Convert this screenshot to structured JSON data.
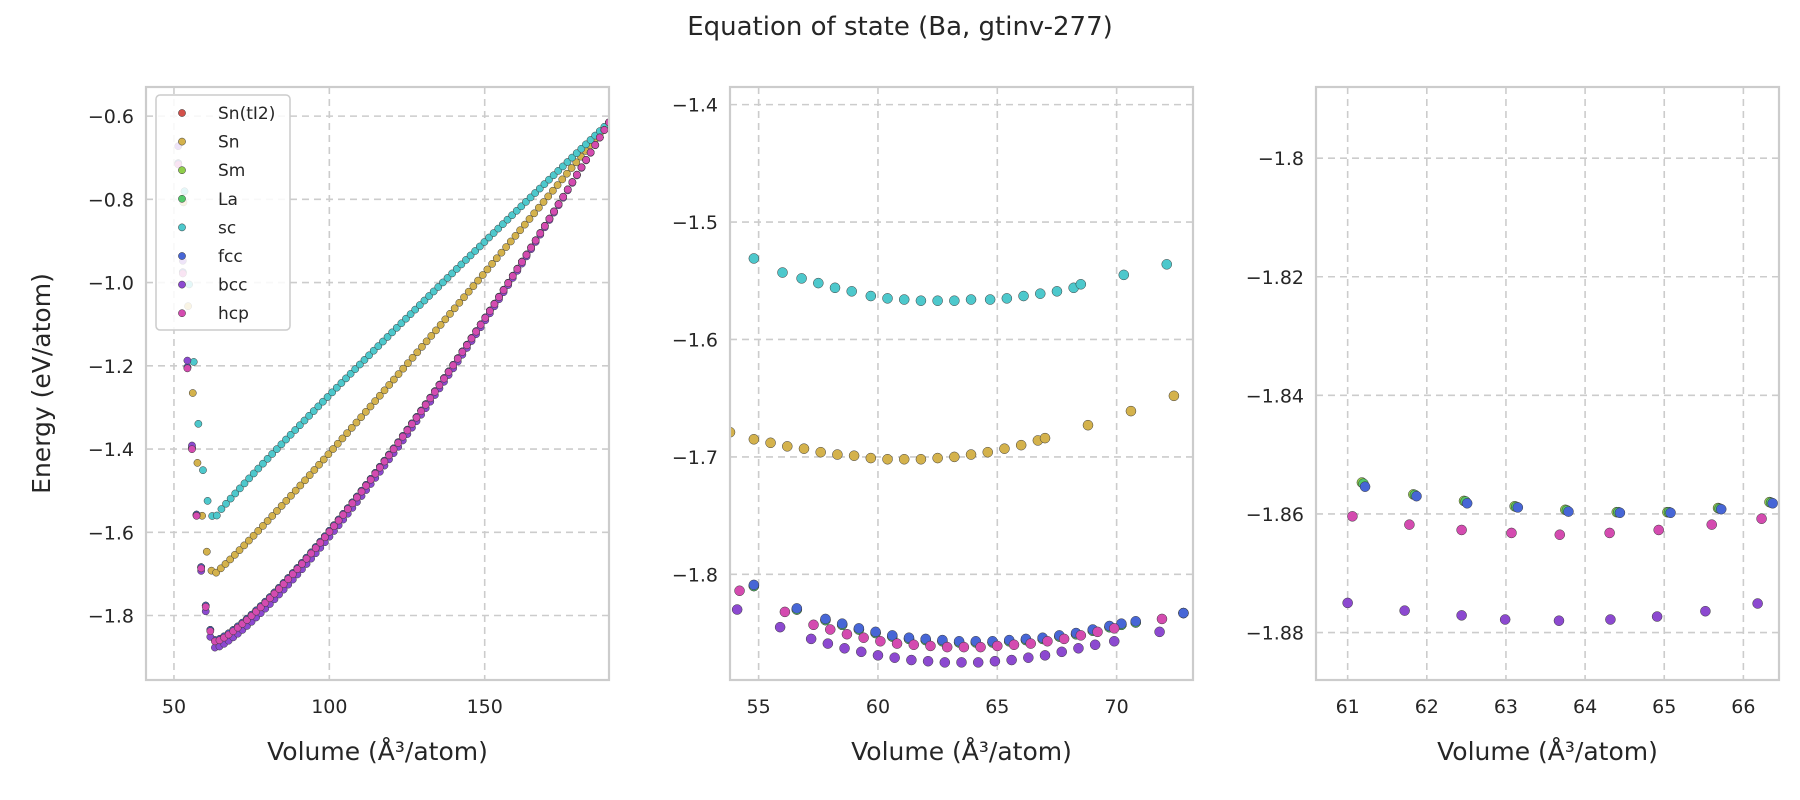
{
  "figure": {
    "title": "Equation of state (Ba, gtinv-277)"
  },
  "colors": {
    "Sn(tI2)": "#d3504a",
    "Sn": "#d4b24c",
    "Sm": "#8fce4a",
    "La": "#52c96a",
    "sc": "#4dc8cc",
    "fcc": "#4766d6",
    "bcc": "#8c49d0",
    "hcp": "#d44bb0"
  },
  "chart_data": [
    {
      "type": "scatter",
      "xlabel": "Volume (Å³/atom)",
      "ylabel": "Energy (eV/atom)",
      "xlim": [
        41,
        190
      ],
      "ylim": [
        -1.955,
        -0.53
      ],
      "xticks": [
        50,
        100,
        150
      ],
      "yticks": [
        -1.8,
        -1.6,
        -1.4,
        -1.2,
        -1.0,
        -0.8,
        -0.6
      ],
      "grid": true,
      "legend": {
        "placement": "top-left",
        "entries": [
          "Sn(tI2)",
          "Sn",
          "Sm",
          "La",
          "sc",
          "fcc",
          "bcc",
          "hcp"
        ]
      },
      "series": [
        {
          "name": "Sn",
          "curve": {
            "v_start": 41,
            "v_end": 190,
            "n": 100,
            "v0": 63,
            "e0": -1.7,
            "b": 0.009,
            "c": 1.07,
            "e_inf": -0.615
          }
        },
        {
          "name": "sc",
          "curve": {
            "v_start": 43,
            "v_end": 190,
            "n": 100,
            "v0": 63,
            "e0": -1.565,
            "b": 0.0085,
            "c": 0.95,
            "e_inf": -0.615
          }
        },
        {
          "name": "Sm",
          "curve": {
            "v_start": 44,
            "v_end": 190,
            "n": 100,
            "v0": 63.5,
            "e0": -1.86,
            "b": 0.0078,
            "c": 1.25,
            "e_inf": -0.615
          }
        },
        {
          "name": "La",
          "curve": {
            "v_start": 44,
            "v_end": 190,
            "n": 100,
            "v0": 63.5,
            "e0": -1.86,
            "b": 0.0078,
            "c": 1.25,
            "e_inf": -0.615
          }
        },
        {
          "name": "fcc",
          "curve": {
            "v_start": 44,
            "v_end": 190,
            "n": 100,
            "v0": 63.5,
            "e0": -1.86,
            "b": 0.0078,
            "c": 1.25,
            "e_inf": -0.615
          }
        },
        {
          "name": "bcc",
          "curve": {
            "v_start": 44,
            "v_end": 190,
            "n": 100,
            "v0": 63.5,
            "e0": -1.878,
            "b": 0.0082,
            "c": 1.25,
            "e_inf": -0.615
          }
        },
        {
          "name": "hcp",
          "curve": {
            "v_start": 44,
            "v_end": 190,
            "n": 100,
            "v0": 63.5,
            "e0": -1.863,
            "b": 0.0078,
            "c": 1.25,
            "e_inf": -0.615
          }
        }
      ]
    },
    {
      "type": "scatter",
      "xlabel": "Volume (Å³/atom)",
      "ylabel": "",
      "xlim": [
        53.8,
        73.2
      ],
      "ylim": [
        -1.89,
        -1.385
      ],
      "xticks": [
        55,
        60,
        65,
        70
      ],
      "yticks": [
        -1.8,
        -1.7,
        -1.6,
        -1.5,
        -1.4
      ],
      "grid": true,
      "series": [
        {
          "name": "sc",
          "x": [
            54.8,
            56.0,
            56.8,
            57.5,
            58.2,
            58.9,
            59.7,
            60.4,
            61.1,
            61.8,
            62.5,
            63.2,
            63.9,
            64.7,
            65.4,
            66.1,
            66.8,
            67.5,
            68.2,
            68.5,
            70.3,
            72.1
          ],
          "y": [
            -1.531,
            -1.543,
            -1.548,
            -1.552,
            -1.556,
            -1.559,
            -1.563,
            -1.565,
            -1.566,
            -1.567,
            -1.567,
            -1.567,
            -1.566,
            -1.566,
            -1.565,
            -1.563,
            -1.561,
            -1.559,
            -1.556,
            -1.553,
            -1.545,
            -1.536
          ]
        },
        {
          "name": "Sn",
          "x": [
            53.8,
            54.8,
            55.5,
            56.2,
            56.9,
            57.6,
            58.3,
            59.0,
            59.7,
            60.4,
            61.1,
            61.8,
            62.5,
            63.2,
            63.9,
            64.6,
            65.3,
            66.0,
            66.7,
            67.0,
            68.8,
            70.6,
            72.4
          ],
          "y": [
            -1.679,
            -1.685,
            -1.688,
            -1.691,
            -1.693,
            -1.696,
            -1.698,
            -1.699,
            -1.701,
            -1.702,
            -1.702,
            -1.702,
            -1.701,
            -1.7,
            -1.698,
            -1.696,
            -1.693,
            -1.69,
            -1.686,
            -1.684,
            -1.673,
            -1.661,
            -1.648
          ]
        },
        {
          "name": "Sm",
          "x": [
            54.8,
            56.6,
            57.8,
            58.5,
            59.2,
            59.9,
            60.6,
            61.3,
            62.0,
            62.7,
            63.4,
            64.1,
            64.8,
            65.5,
            66.2,
            66.9,
            67.6,
            68.3,
            69.0,
            69.7,
            70.2,
            70.8,
            72.8
          ],
          "y": [
            -1.81,
            -1.83,
            -1.839,
            -1.843,
            -1.847,
            -1.85,
            -1.853,
            -1.855,
            -1.856,
            -1.857,
            -1.858,
            -1.858,
            -1.858,
            -1.857,
            -1.856,
            -1.855,
            -1.853,
            -1.851,
            -1.848,
            -1.845,
            -1.843,
            -1.841,
            -1.833
          ]
        },
        {
          "name": "La",
          "x": [
            54.8,
            56.6,
            57.8,
            58.5,
            59.2,
            59.9,
            60.6,
            61.3,
            62.0,
            62.7,
            63.4,
            64.1,
            64.8,
            65.5,
            66.2,
            66.9,
            67.6,
            68.3,
            69.0,
            69.7,
            70.2,
            70.8,
            72.8
          ],
          "y": [
            -1.81,
            -1.83,
            -1.839,
            -1.843,
            -1.847,
            -1.85,
            -1.853,
            -1.855,
            -1.856,
            -1.857,
            -1.858,
            -1.858,
            -1.858,
            -1.857,
            -1.856,
            -1.855,
            -1.853,
            -1.851,
            -1.848,
            -1.845,
            -1.843,
            -1.841,
            -1.833
          ]
        },
        {
          "name": "fcc",
          "x": [
            54.8,
            56.6,
            57.8,
            58.5,
            59.2,
            59.9,
            60.6,
            61.3,
            62.0,
            62.7,
            63.4,
            64.1,
            64.8,
            65.5,
            66.2,
            66.9,
            67.6,
            68.3,
            69.0,
            69.7,
            70.2,
            70.8,
            72.8
          ],
          "y": [
            -1.809,
            -1.829,
            -1.838,
            -1.842,
            -1.846,
            -1.849,
            -1.852,
            -1.854,
            -1.855,
            -1.856,
            -1.857,
            -1.857,
            -1.857,
            -1.856,
            -1.855,
            -1.854,
            -1.852,
            -1.85,
            -1.847,
            -1.844,
            -1.842,
            -1.84,
            -1.833
          ]
        },
        {
          "name": "bcc",
          "x": [
            54.1,
            55.9,
            57.2,
            57.9,
            58.6,
            59.3,
            60.0,
            60.7,
            61.4,
            62.1,
            62.8,
            63.5,
            64.2,
            64.9,
            65.6,
            66.3,
            67.0,
            67.7,
            68.4,
            69.1,
            69.9,
            71.8
          ],
          "y": [
            -1.83,
            -1.845,
            -1.855,
            -1.859,
            -1.863,
            -1.866,
            -1.869,
            -1.871,
            -1.873,
            -1.874,
            -1.875,
            -1.875,
            -1.875,
            -1.874,
            -1.873,
            -1.871,
            -1.869,
            -1.866,
            -1.863,
            -1.86,
            -1.857,
            -1.849
          ]
        },
        {
          "name": "hcp",
          "x": [
            54.2,
            56.1,
            57.3,
            58.0,
            58.7,
            59.4,
            60.1,
            60.8,
            61.5,
            62.2,
            62.9,
            63.6,
            64.3,
            65.0,
            65.7,
            66.4,
            67.1,
            67.8,
            68.5,
            69.2,
            69.9,
            71.9
          ],
          "y": [
            -1.814,
            -1.832,
            -1.843,
            -1.847,
            -1.851,
            -1.854,
            -1.857,
            -1.859,
            -1.86,
            -1.861,
            -1.862,
            -1.862,
            -1.862,
            -1.861,
            -1.86,
            -1.859,
            -1.857,
            -1.855,
            -1.852,
            -1.849,
            -1.846,
            -1.838
          ]
        }
      ]
    },
    {
      "type": "scatter",
      "xlabel": "Volume (Å³/atom)",
      "ylabel": "",
      "xlim": [
        60.6,
        66.45
      ],
      "ylim": [
        -1.888,
        -1.788
      ],
      "xticks": [
        61,
        62,
        63,
        64,
        65,
        66
      ],
      "yticks": [
        -1.88,
        -1.86,
        -1.84,
        -1.82,
        -1.8
      ],
      "grid": true,
      "series": [
        {
          "name": "Sm",
          "x": [
            61.18,
            61.83,
            62.47,
            63.11,
            63.75,
            64.4,
            65.04,
            65.68,
            66.33
          ],
          "y": [
            -1.8547,
            -1.8567,
            -1.8578,
            -1.8587,
            -1.8593,
            -1.8597,
            -1.8597,
            -1.859,
            -1.858
          ]
        },
        {
          "name": "La",
          "x": [
            61.2,
            61.85,
            62.49,
            63.13,
            63.77,
            64.42,
            65.06,
            65.7,
            66.35
          ],
          "y": [
            -1.8549,
            -1.8568,
            -1.8579,
            -1.8588,
            -1.8594,
            -1.8597,
            -1.8597,
            -1.8591,
            -1.8581
          ]
        },
        {
          "name": "fcc",
          "x": [
            61.22,
            61.87,
            62.51,
            63.15,
            63.79,
            64.44,
            65.08,
            65.72,
            66.37
          ],
          "y": [
            -1.8554,
            -1.857,
            -1.8582,
            -1.8589,
            -1.8596,
            -1.8598,
            -1.8598,
            -1.8592,
            -1.8582
          ]
        },
        {
          "name": "bcc",
          "x": [
            61.0,
            61.72,
            62.44,
            62.99,
            63.67,
            64.32,
            64.91,
            65.52,
            66.18
          ],
          "y": [
            -1.875,
            -1.8763,
            -1.8771,
            -1.8778,
            -1.878,
            -1.8778,
            -1.8773,
            -1.8764,
            -1.8751
          ]
        },
        {
          "name": "hcp",
          "x": [
            61.06,
            61.78,
            62.44,
            63.07,
            63.68,
            64.31,
            64.93,
            65.6,
            66.23
          ],
          "y": [
            -1.8604,
            -1.8618,
            -1.8627,
            -1.8632,
            -1.8635,
            -1.8632,
            -1.8627,
            -1.8618,
            -1.8608
          ]
        }
      ]
    }
  ]
}
